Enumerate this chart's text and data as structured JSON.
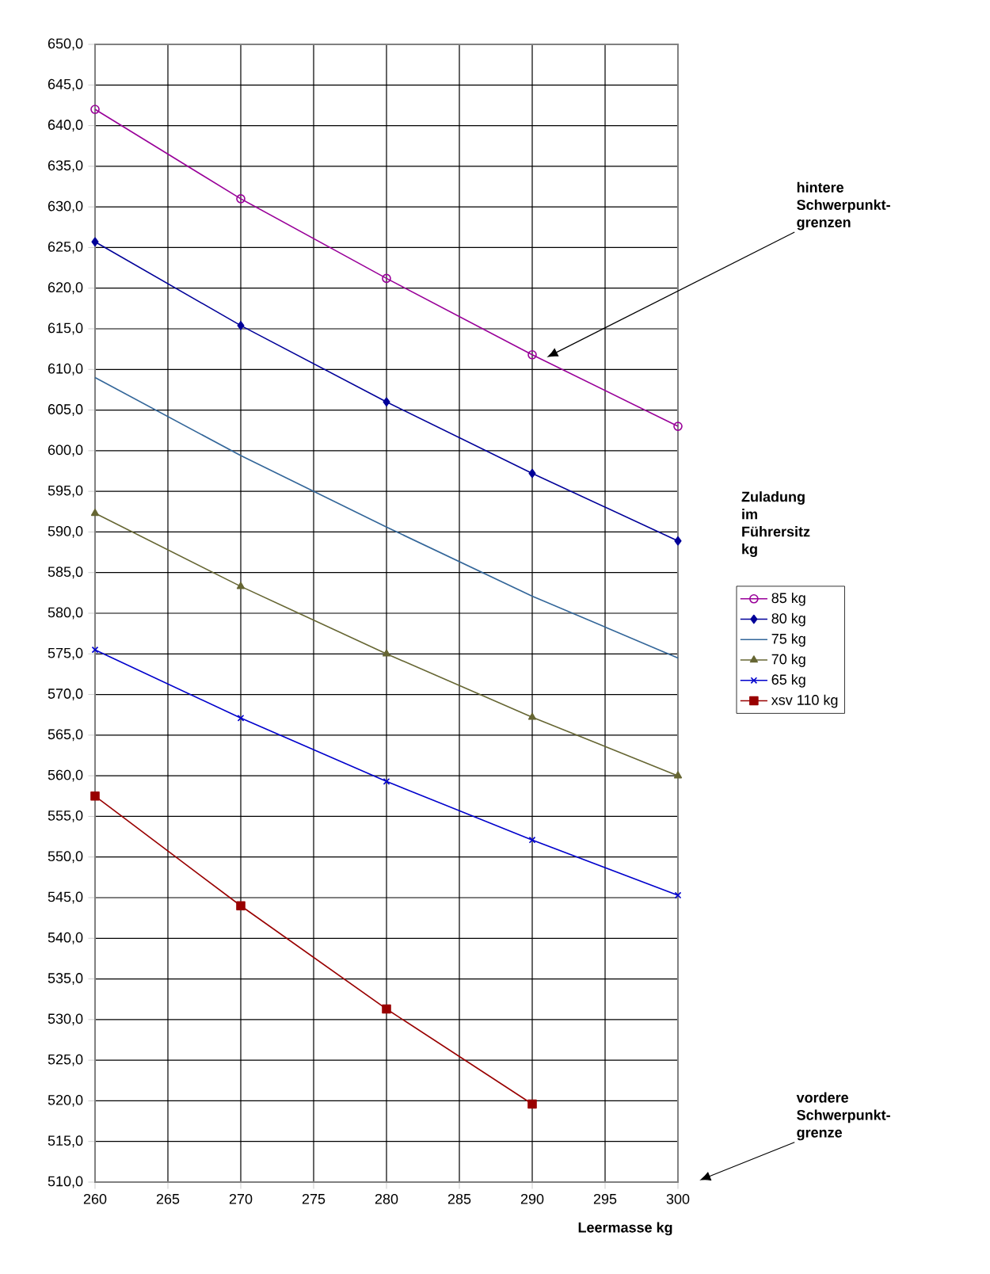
{
  "chart_data": {
    "type": "line",
    "xlabel": "Leermasse kg",
    "legend_title": "Zuladung im Führersitz kg",
    "x": [
      260,
      270,
      280,
      290,
      300
    ],
    "xlim": [
      260,
      300
    ],
    "xticks": [
      260,
      265,
      270,
      275,
      280,
      285,
      290,
      295,
      300
    ],
    "ylim": [
      510,
      650
    ],
    "yticks": [
      {
        "value": 510,
        "label": "510,0"
      },
      {
        "value": 515,
        "label": "515,0"
      },
      {
        "value": 520,
        "label": "520,0"
      },
      {
        "value": 525,
        "label": "525,0"
      },
      {
        "value": 530,
        "label": "530,0"
      },
      {
        "value": 535,
        "label": "535,0"
      },
      {
        "value": 540,
        "label": "540,0"
      },
      {
        "value": 545,
        "label": "545,0"
      },
      {
        "value": 550,
        "label": "550,0"
      },
      {
        "value": 555,
        "label": "555,0"
      },
      {
        "value": 560,
        "label": "560,0"
      },
      {
        "value": 565,
        "label": "565,0"
      },
      {
        "value": 570,
        "label": "570,0"
      },
      {
        "value": 575,
        "label": "575,0"
      },
      {
        "value": 580,
        "label": "580,0"
      },
      {
        "value": 585,
        "label": "585,0"
      },
      {
        "value": 590,
        "label": "590,0"
      },
      {
        "value": 595,
        "label": "595,0"
      },
      {
        "value": 600,
        "label": "600,0"
      },
      {
        "value": 605,
        "label": "605,0"
      },
      {
        "value": 610,
        "label": "610,0"
      },
      {
        "value": 615,
        "label": "615,0"
      },
      {
        "value": 620,
        "label": "620,0"
      },
      {
        "value": 625,
        "label": "625,0"
      },
      {
        "value": 630,
        "label": "630,0"
      },
      {
        "value": 635,
        "label": "635,0"
      },
      {
        "value": 640,
        "label": "640,0"
      },
      {
        "value": 645,
        "label": "645,0"
      },
      {
        "value": 650,
        "label": "650,0"
      }
    ],
    "grid": true,
    "legend": "right",
    "line_style": "solid",
    "series": [
      {
        "name": "85 kg",
        "color": "#990099",
        "marker": "circle",
        "values": [
          642,
          631,
          621.2,
          611.8,
          603
        ]
      },
      {
        "name": "80 kg",
        "color": "#000099",
        "marker": "diamond",
        "values": [
          625.7,
          615.4,
          606,
          597.2,
          588.9
        ]
      },
      {
        "name": "75 kg",
        "color": "#336699",
        "marker": "none",
        "values": [
          609,
          599.4,
          590.6,
          582.1,
          574.5
        ]
      },
      {
        "name": "70 kg",
        "color": "#666633",
        "marker": "triangle",
        "values": [
          592.3,
          583.3,
          575,
          567.2,
          560
        ]
      },
      {
        "name": "65 kg",
        "color": "#0000cc",
        "marker": "cross",
        "values": [
          575.5,
          567.1,
          559.3,
          552.1,
          545.3
        ]
      },
      {
        "name": "xsv 110 kg",
        "color": "#990000",
        "marker": "square",
        "values": [
          557.5,
          544,
          531.3,
          519.6,
          null
        ]
      }
    ],
    "annotations": [
      {
        "text": "hintere Schwerpunkt-grenzen",
        "x": 291,
        "y": 611.5
      },
      "vordere Schwerpunkt-grenze"
    ]
  }
}
